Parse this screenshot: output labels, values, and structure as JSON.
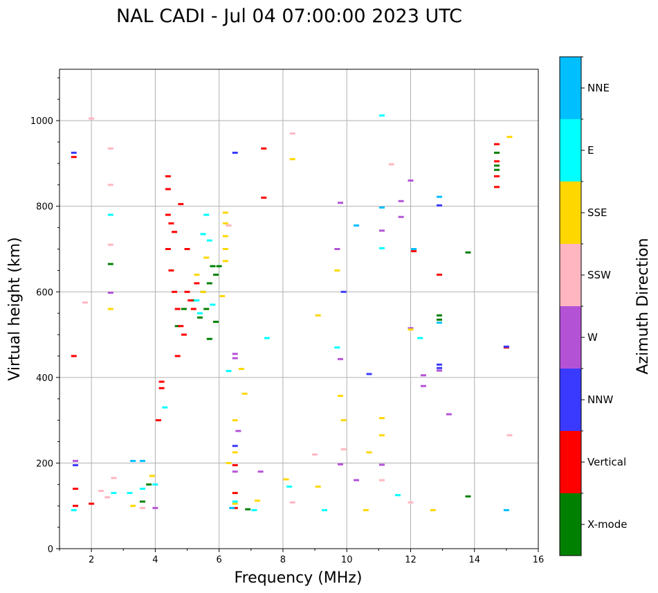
{
  "chart_data": {
    "type": "scatter",
    "title": "NAL CADI - Jul 04 07:00:00 2023 UTC",
    "xlabel": "Frequency (MHz)",
    "ylabel": "Virtual height (km)",
    "xlim": [
      1,
      16
    ],
    "ylim": [
      0,
      1120
    ],
    "x_ticks": [
      2,
      4,
      6,
      8,
      10,
      12,
      14,
      16
    ],
    "y_ticks": [
      0,
      200,
      400,
      600,
      800,
      1000
    ],
    "grid": true,
    "colorbar": {
      "label": "Azimuth Direction",
      "categories": [
        "X-mode",
        "Vertical",
        "NNW",
        "W",
        "SSW",
        "SSE",
        "E",
        "NNE"
      ],
      "colors": [
        "#008000",
        "#ff0000",
        "#3a3aff",
        "#b452d6",
        "#ffb6c1",
        "#ffd700",
        "#00ffff",
        "#00bfff"
      ]
    },
    "series": [
      {
        "name": "X-mode",
        "points": [
          [
            2.6,
            665
          ],
          [
            3.6,
            110
          ],
          [
            3.8,
            150
          ],
          [
            4.7,
            520
          ],
          [
            4.9,
            560
          ],
          [
            5.2,
            580
          ],
          [
            5.4,
            540
          ],
          [
            5.5,
            600
          ],
          [
            5.6,
            560
          ],
          [
            5.7,
            620
          ],
          [
            5.8,
            660
          ],
          [
            5.9,
            640
          ],
          [
            6.0,
            660
          ],
          [
            5.7,
            490
          ],
          [
            5.9,
            530
          ],
          [
            6.9,
            92
          ],
          [
            12.9,
            545
          ],
          [
            12.9,
            535
          ],
          [
            13.8,
            692
          ],
          [
            13.8,
            122
          ],
          [
            14.7,
            925
          ],
          [
            14.7,
            895
          ],
          [
            14.7,
            885
          ]
        ]
      },
      {
        "name": "Vertical",
        "points": [
          [
            1.45,
            915
          ],
          [
            1.45,
            450
          ],
          [
            1.5,
            140
          ],
          [
            1.5,
            100
          ],
          [
            2.0,
            105
          ],
          [
            4.2,
            390
          ],
          [
            4.2,
            375
          ],
          [
            4.1,
            300
          ],
          [
            4.4,
            870
          ],
          [
            4.4,
            840
          ],
          [
            4.4,
            780
          ],
          [
            4.4,
            700
          ],
          [
            4.5,
            650
          ],
          [
            4.6,
            600
          ],
          [
            4.7,
            560
          ],
          [
            4.8,
            520
          ],
          [
            4.9,
            500
          ],
          [
            5.0,
            600
          ],
          [
            5.1,
            580
          ],
          [
            5.2,
            560
          ],
          [
            4.5,
            760
          ],
          [
            4.6,
            740
          ],
          [
            4.8,
            805
          ],
          [
            5.0,
            700
          ],
          [
            5.3,
            620
          ],
          [
            4.7,
            450
          ],
          [
            6.5,
            130
          ],
          [
            6.5,
            195
          ],
          [
            6.5,
            95
          ],
          [
            7.4,
            935
          ],
          [
            7.4,
            820
          ],
          [
            12.1,
            695
          ],
          [
            12.9,
            640
          ],
          [
            14.7,
            945
          ],
          [
            14.7,
            905
          ],
          [
            14.7,
            870
          ],
          [
            14.7,
            845
          ],
          [
            15.0,
            470
          ]
        ]
      },
      {
        "name": "NNW",
        "points": [
          [
            1.45,
            925
          ],
          [
            1.5,
            195
          ],
          [
            6.5,
            925
          ],
          [
            6.5,
            240
          ],
          [
            9.9,
            600
          ],
          [
            10.7,
            408
          ],
          [
            12.9,
            802
          ],
          [
            12.9,
            430
          ],
          [
            12.9,
            422
          ],
          [
            15.0,
            472
          ]
        ]
      },
      {
        "name": "W",
        "points": [
          [
            1.5,
            205
          ],
          [
            2.6,
            598
          ],
          [
            6.5,
            455
          ],
          [
            6.5,
            445
          ],
          [
            6.5,
            180
          ],
          [
            6.6,
            275
          ],
          [
            7.3,
            180
          ],
          [
            9.7,
            700
          ],
          [
            9.8,
            808
          ],
          [
            9.8,
            443
          ],
          [
            9.8,
            197
          ],
          [
            10.3,
            160
          ],
          [
            11.1,
            743
          ],
          [
            11.1,
            196
          ],
          [
            11.7,
            812
          ],
          [
            11.7,
            775
          ],
          [
            12.0,
            860
          ],
          [
            12.0,
            515
          ],
          [
            12.4,
            405
          ],
          [
            12.4,
            380
          ],
          [
            12.9,
            416
          ],
          [
            13.2,
            314
          ],
          [
            4.0,
            95
          ]
        ]
      },
      {
        "name": "SSW",
        "points": [
          [
            1.8,
            575
          ],
          [
            2.0,
            1005
          ],
          [
            2.3,
            135
          ],
          [
            2.5,
            120
          ],
          [
            2.6,
            935
          ],
          [
            2.6,
            850
          ],
          [
            2.6,
            710
          ],
          [
            2.7,
            165
          ],
          [
            3.6,
            95
          ],
          [
            8.3,
            970
          ],
          [
            8.3,
            108
          ],
          [
            9.0,
            220
          ],
          [
            9.9,
            232
          ],
          [
            11.4,
            898
          ],
          [
            11.1,
            160
          ],
          [
            12.0,
            108
          ],
          [
            15.1,
            265
          ],
          [
            6.3,
            755
          ]
        ]
      },
      {
        "name": "SSE",
        "points": [
          [
            2.6,
            560
          ],
          [
            3.3,
            100
          ],
          [
            3.9,
            170
          ],
          [
            5.3,
            640
          ],
          [
            5.5,
            600
          ],
          [
            5.6,
            680
          ],
          [
            6.2,
            785
          ],
          [
            6.2,
            760
          ],
          [
            6.2,
            730
          ],
          [
            6.2,
            700
          ],
          [
            6.2,
            672
          ],
          [
            6.1,
            590
          ],
          [
            6.3,
            200
          ],
          [
            6.5,
            300
          ],
          [
            6.5,
            225
          ],
          [
            6.5,
            105
          ],
          [
            6.7,
            420
          ],
          [
            6.8,
            362
          ],
          [
            7.2,
            112
          ],
          [
            8.3,
            910
          ],
          [
            8.1,
            162
          ],
          [
            9.1,
            545
          ],
          [
            9.1,
            145
          ],
          [
            9.7,
            650
          ],
          [
            9.8,
            357
          ],
          [
            9.9,
            300
          ],
          [
            10.6,
            90
          ],
          [
            10.7,
            225
          ],
          [
            11.1,
            305
          ],
          [
            11.1,
            265
          ],
          [
            12.0,
            512
          ],
          [
            12.7,
            90
          ],
          [
            15.1,
            962
          ]
        ]
      },
      {
        "name": "E",
        "points": [
          [
            1.45,
            90
          ],
          [
            2.6,
            780
          ],
          [
            2.7,
            130
          ],
          [
            3.2,
            130
          ],
          [
            3.6,
            140
          ],
          [
            4.0,
            150
          ],
          [
            4.3,
            330
          ],
          [
            5.3,
            580
          ],
          [
            5.4,
            550
          ],
          [
            5.5,
            735
          ],
          [
            5.6,
            780
          ],
          [
            5.8,
            570
          ],
          [
            5.7,
            720
          ],
          [
            6.3,
            415
          ],
          [
            6.5,
            110
          ],
          [
            7.1,
            90
          ],
          [
            7.5,
            492
          ],
          [
            8.2,
            145
          ],
          [
            9.7,
            470
          ],
          [
            11.1,
            1012
          ],
          [
            11.1,
            702
          ],
          [
            11.6,
            125
          ],
          [
            12.3,
            492
          ],
          [
            9.3,
            90
          ]
        ]
      },
      {
        "name": "NNE",
        "points": [
          [
            3.3,
            205
          ],
          [
            3.6,
            205
          ],
          [
            6.4,
            95
          ],
          [
            10.3,
            755
          ],
          [
            11.1,
            797
          ],
          [
            12.1,
            700
          ],
          [
            12.9,
            822
          ],
          [
            12.9,
            528
          ],
          [
            15.0,
            90
          ]
        ]
      }
    ]
  }
}
